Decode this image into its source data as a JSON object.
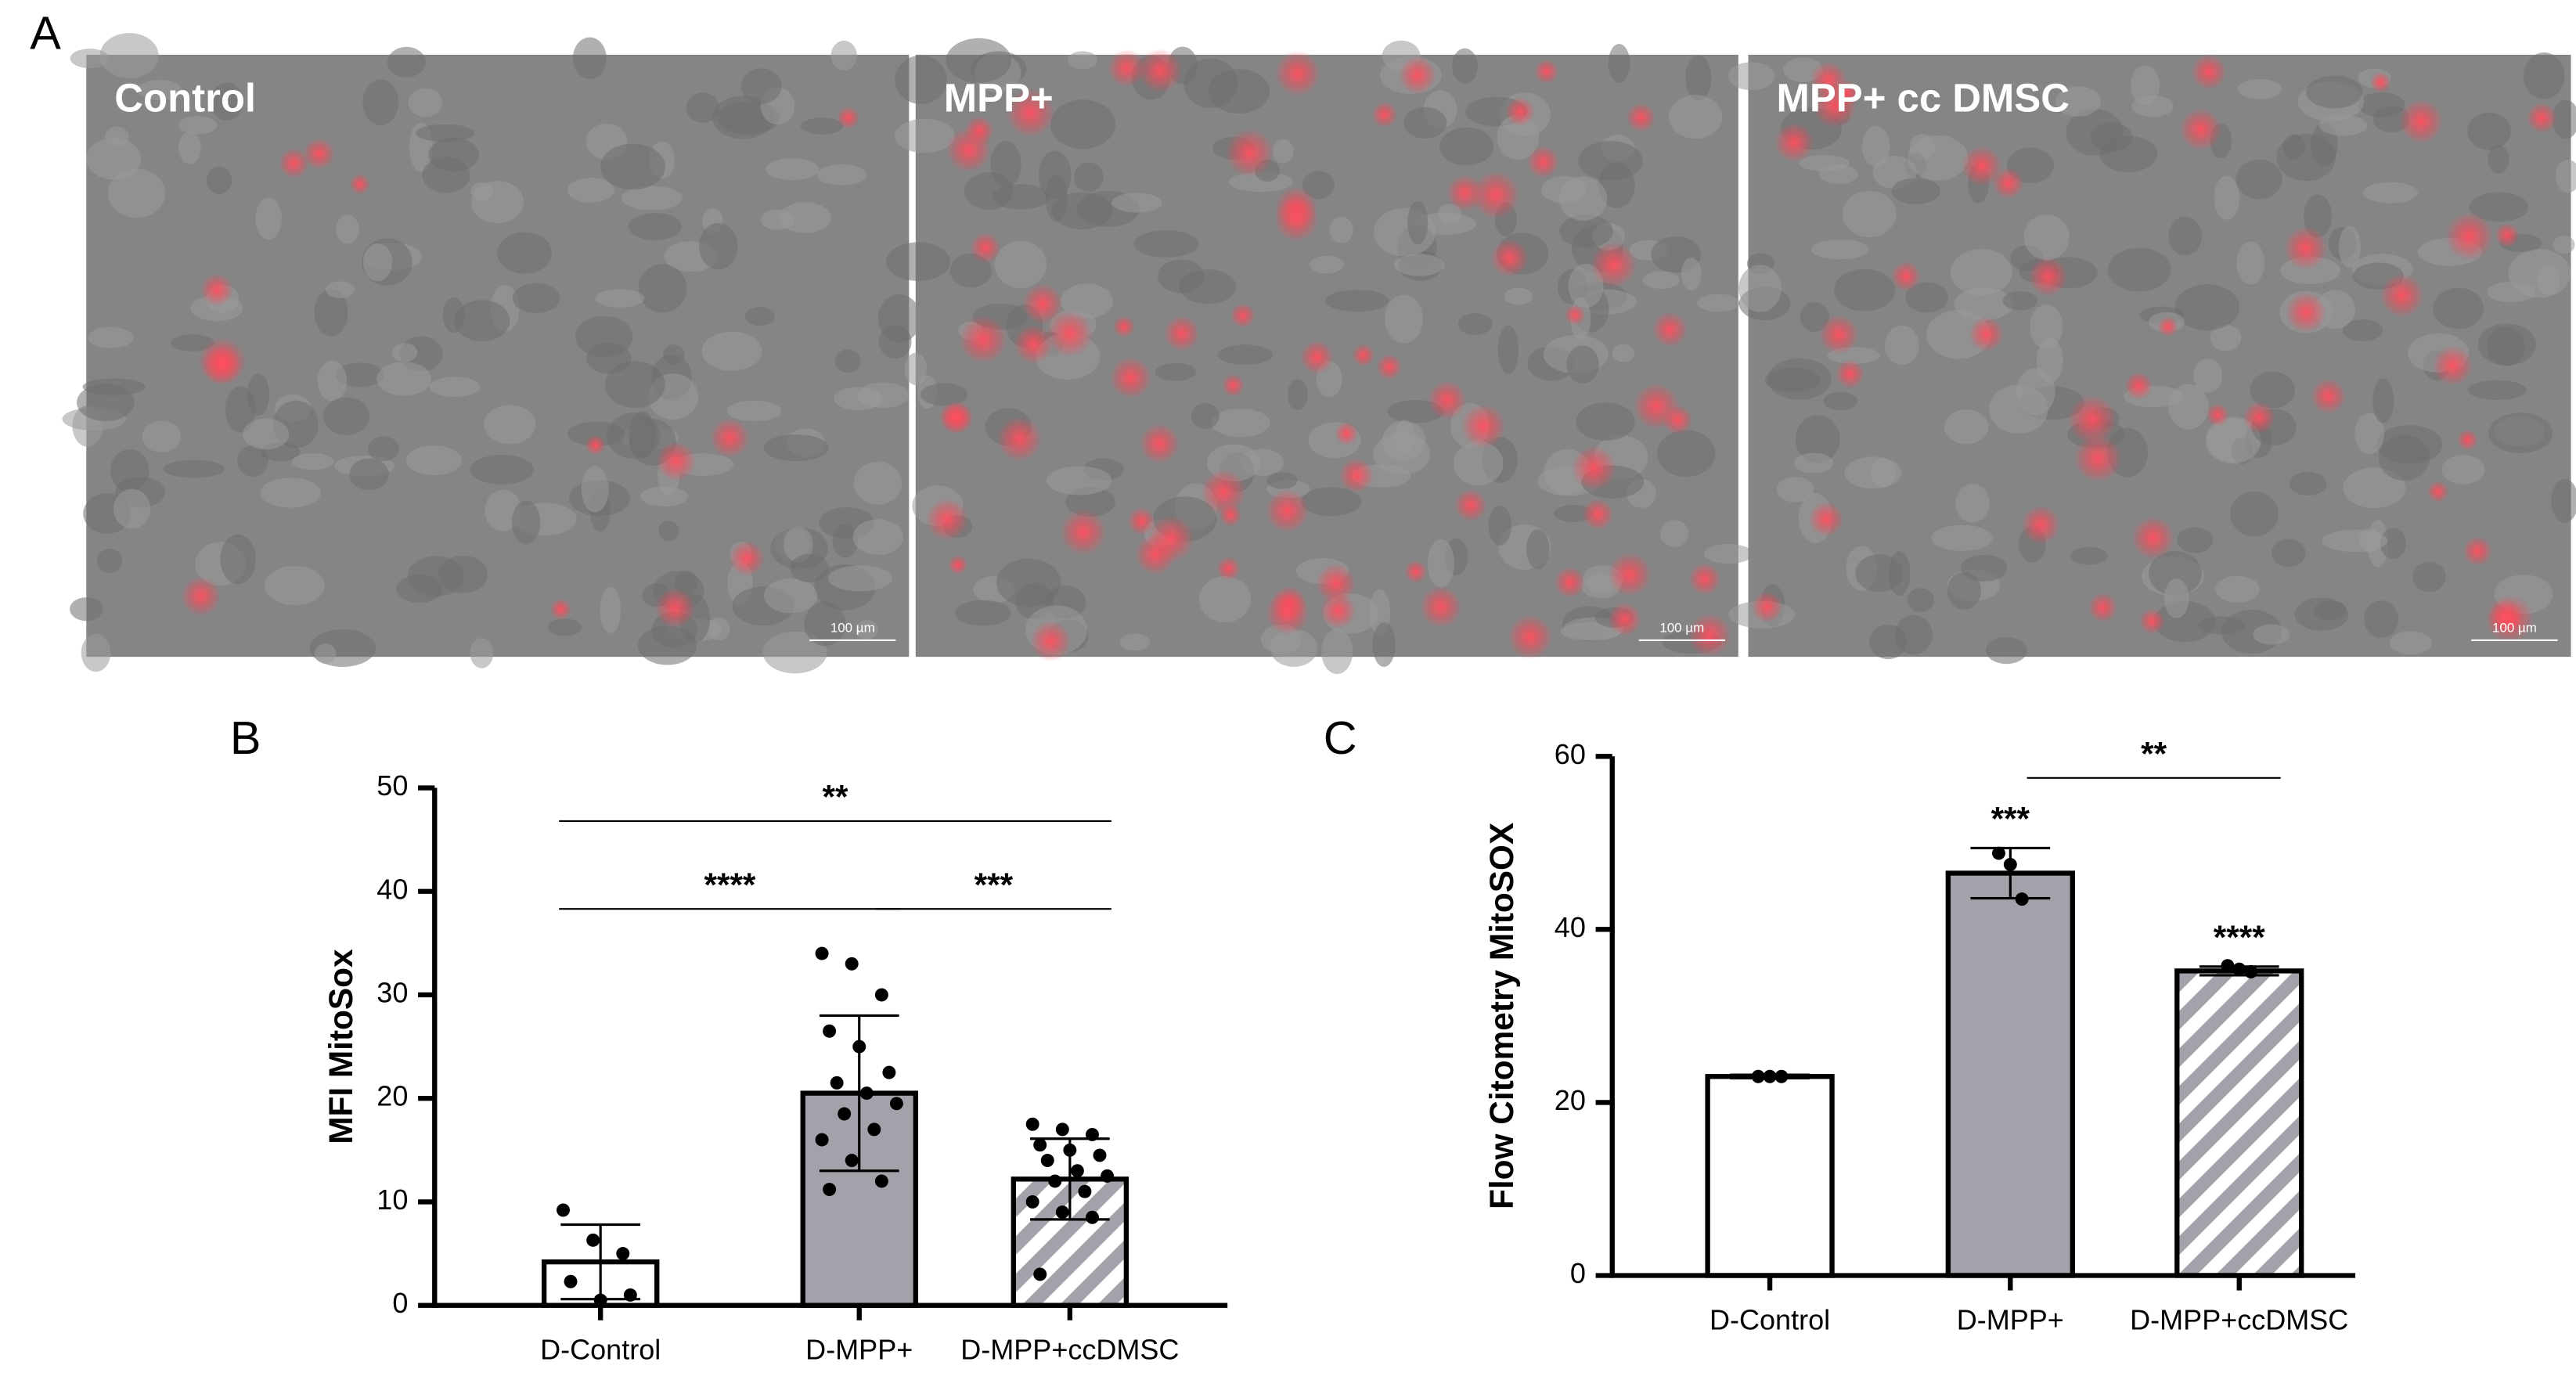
{
  "figure": {
    "panel": "A",
    "images": [
      {
        "label": "Control",
        "scale_bar": "100 µm"
      },
      {
        "label": "MPP+",
        "scale_bar": "100 µm"
      },
      {
        "label": "MPP+ cc DMSC",
        "scale_bar": "100 µm"
      }
    ]
  },
  "chart_data": [
    {
      "type": "bar",
      "panel": "B",
      "y_label": "MFI MitoSox",
      "categories": [
        "D-Control",
        "D-MPP+",
        "D-MPP+ccDMSC"
      ],
      "values": [
        4.2,
        20.5,
        12.2
      ],
      "errors": [
        3.6,
        7.5,
        3.9
      ],
      "colors": [
        "#ffffff",
        "#a2a2aa",
        "#a2a2aa"
      ],
      "fills": [
        "solid",
        "solid",
        "hatch"
      ],
      "points": [
        [
          9.2,
          6.3,
          5.0,
          2.3,
          0.5,
          1.0
        ],
        [
          34,
          33,
          30,
          26.5,
          25,
          22.5,
          21.5,
          20.5,
          19.5,
          18.5,
          17,
          16,
          14,
          12,
          11.2
        ],
        [
          17.5,
          17,
          16.5,
          15.5,
          15,
          14.5,
          14,
          13,
          12.5,
          12,
          11,
          10,
          9,
          8.5,
          3
        ]
      ],
      "ylim": [
        0,
        50
      ],
      "yticks": [
        0,
        10,
        20,
        30,
        40,
        50
      ],
      "annotations": [
        {
          "text": "**",
          "from": "D-Control",
          "to": "D-MPP+ccDMSC"
        },
        {
          "text": "****",
          "from": "D-Control",
          "to": "D-MPP+"
        },
        {
          "text": "***",
          "from": "D-MPP+",
          "to": "D-MPP+ccDMSC"
        }
      ]
    },
    {
      "type": "bar",
      "panel": "C",
      "y_label": "Flow Citometry MitoSOX",
      "categories": [
        "D-Control",
        "D-MPP+",
        "D-MPP+ccDMSC"
      ],
      "values": [
        23,
        46.5,
        35.2
      ],
      "errors": [
        0.2,
        2.9,
        0.5
      ],
      "colors": [
        "#ffffff",
        "#a2a2aa",
        "#a2a2aa"
      ],
      "fills": [
        "solid",
        "solid",
        "hatch"
      ],
      "points": [
        [
          23,
          23,
          23
        ],
        [
          48.8,
          47.5,
          43.5
        ],
        [
          35.8,
          35.4,
          35.1
        ]
      ],
      "ylim": [
        0,
        60
      ],
      "yticks": [
        0,
        20,
        40,
        60
      ],
      "annotations": [
        {
          "text": "***",
          "from": "D-MPP+",
          "to": "D-MPP+"
        },
        {
          "text": "****",
          "from": "D-MPP+ccDMSC",
          "to": "D-MPP+ccDMSC"
        },
        {
          "text": "**",
          "from": "D-MPP+",
          "to": "D-MPP+ccDMSC"
        }
      ]
    }
  ]
}
